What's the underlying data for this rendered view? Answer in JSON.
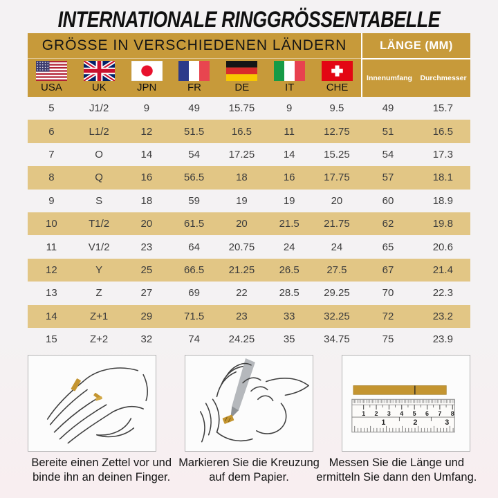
{
  "title": "INTERNATIONALE RINGGRÖSSENTABELLE",
  "header": {
    "group_title": "GRÖSSE IN VERSCHIEDENEN LÄNDERN",
    "length_title": "LÄNGE (MM)",
    "inner_circumference_label": "Innenumfang",
    "diameter_label": "Durchmesser"
  },
  "countries": [
    {
      "label": "USA",
      "flag_icon": "usa-flag"
    },
    {
      "label": "UK",
      "flag_icon": "uk-flag"
    },
    {
      "label": "JPN",
      "flag_icon": "japan-flag"
    },
    {
      "label": "FR",
      "flag_icon": "france-flag"
    },
    {
      "label": "DE",
      "flag_icon": "germany-flag"
    },
    {
      "label": "IT",
      "flag_icon": "italy-flag"
    },
    {
      "label": "CHE",
      "flag_icon": "switzerland-flag"
    }
  ],
  "table": {
    "columns": [
      "USA",
      "UK",
      "JPN",
      "FR",
      "DE",
      "IT",
      "CHE",
      "Innenumfang",
      "Durchmesser"
    ],
    "rows": [
      [
        "5",
        "J1/2",
        "9",
        "49",
        "15.75",
        "9",
        "9.5",
        "49",
        "15.7"
      ],
      [
        "6",
        "L1/2",
        "12",
        "51.5",
        "16.5",
        "11",
        "12.75",
        "51",
        "16.5"
      ],
      [
        "7",
        "O",
        "14",
        "54",
        "17.25",
        "14",
        "15.25",
        "54",
        "17.3"
      ],
      [
        "8",
        "Q",
        "16",
        "56.5",
        "18",
        "16",
        "17.75",
        "57",
        "18.1"
      ],
      [
        "9",
        "S",
        "18",
        "59",
        "19",
        "19",
        "20",
        "60",
        "18.9"
      ],
      [
        "10",
        "T1/2",
        "20",
        "61.5",
        "20",
        "21.5",
        "21.75",
        "62",
        "19.8"
      ],
      [
        "11",
        "V1/2",
        "23",
        "64",
        "20.75",
        "24",
        "24",
        "65",
        "20.6"
      ],
      [
        "12",
        "Y",
        "25",
        "66.5",
        "21.25",
        "26.5",
        "27.5",
        "67",
        "21.4"
      ],
      [
        "13",
        "Z",
        "27",
        "69",
        "22",
        "28.5",
        "29.25",
        "70",
        "22.3"
      ],
      [
        "14",
        "Z+1",
        "29",
        "71.5",
        "23",
        "33",
        "32.25",
        "72",
        "23.2"
      ],
      [
        "15",
        "Z+2",
        "32",
        "74",
        "24.25",
        "35",
        "34.75",
        "75",
        "23.9"
      ]
    ]
  },
  "steps": [
    {
      "illustration": "hand-with-paper-strip",
      "line1": "Bereite einen Zettel vor und",
      "line2": "binde ihn an deinen Finger."
    },
    {
      "illustration": "pen-marking-hand",
      "line1": "Markieren Sie die Kreuzung",
      "line2": "auf dem Papier."
    },
    {
      "illustration": "ruler-with-paper-strip",
      "line1": "Messen Sie die Länge und",
      "line2": "ermitteln Sie dann den Umfang."
    }
  ],
  "ruler": {
    "inch_scale": [
      "1",
      "2",
      "3",
      "4",
      "5",
      "6",
      "7",
      "8"
    ],
    "cm_scale": [
      "1",
      "2",
      "3"
    ]
  },
  "colors": {
    "header_gold": "#c79a3a",
    "row_gold": "#e2c685",
    "strip_gold": "#c49531",
    "background": "#f4f1f2"
  }
}
